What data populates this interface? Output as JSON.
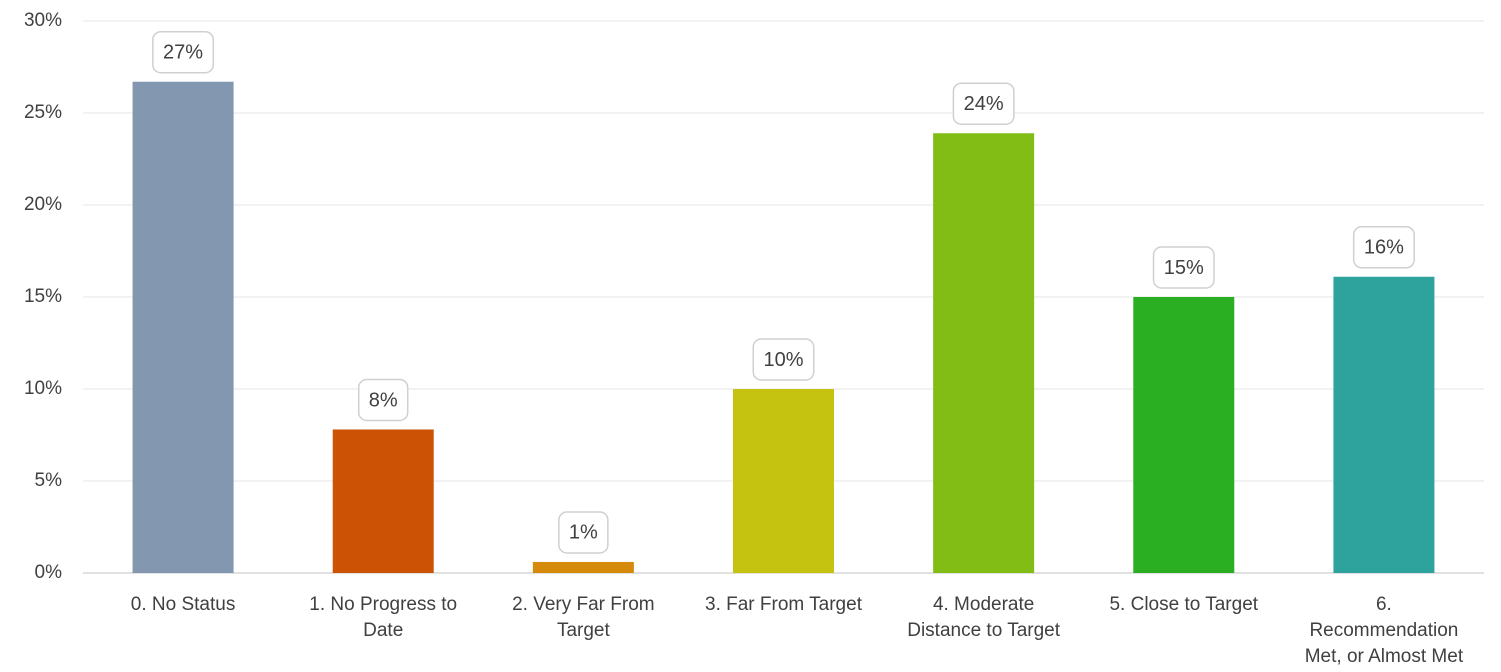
{
  "chart_data": {
    "type": "bar",
    "title": "",
    "xlabel": "",
    "ylabel": "",
    "ylim": [
      0,
      30
    ],
    "yticks": [
      0,
      5,
      10,
      15,
      20,
      25,
      30
    ],
    "ytick_labels": [
      "0%",
      "5%",
      "10%",
      "15%",
      "20%",
      "25%",
      "30%"
    ],
    "grid": true,
    "legend": "none",
    "categories": [
      "0. No Status",
      "1. No Progress to Date",
      "2. Very Far From Target",
      "3. Far From Target",
      "4. Moderate Distance to Target",
      "5. Close to Target",
      "6. Recommendation Met, or Almost Met"
    ],
    "category_lines": [
      [
        "0. No Status"
      ],
      [
        "1. No Progress to",
        "Date"
      ],
      [
        "2. Very Far From",
        "Target"
      ],
      [
        "3. Far From Target"
      ],
      [
        "4. Moderate",
        "Distance to Target"
      ],
      [
        "5. Close to Target"
      ],
      [
        "6.",
        "Recommendation",
        "Met, or Almost Met"
      ]
    ],
    "values": [
      26.7,
      7.8,
      0.6,
      10.0,
      23.9,
      15.0,
      16.1
    ],
    "data_labels": [
      "27%",
      "8%",
      "1%",
      "10%",
      "24%",
      "15%",
      "16%"
    ],
    "colors": [
      "#8497b0",
      "#cc5206",
      "#d68a0b",
      "#c5c30f",
      "#82bd16",
      "#2aaf22",
      "#2ea29d"
    ]
  }
}
